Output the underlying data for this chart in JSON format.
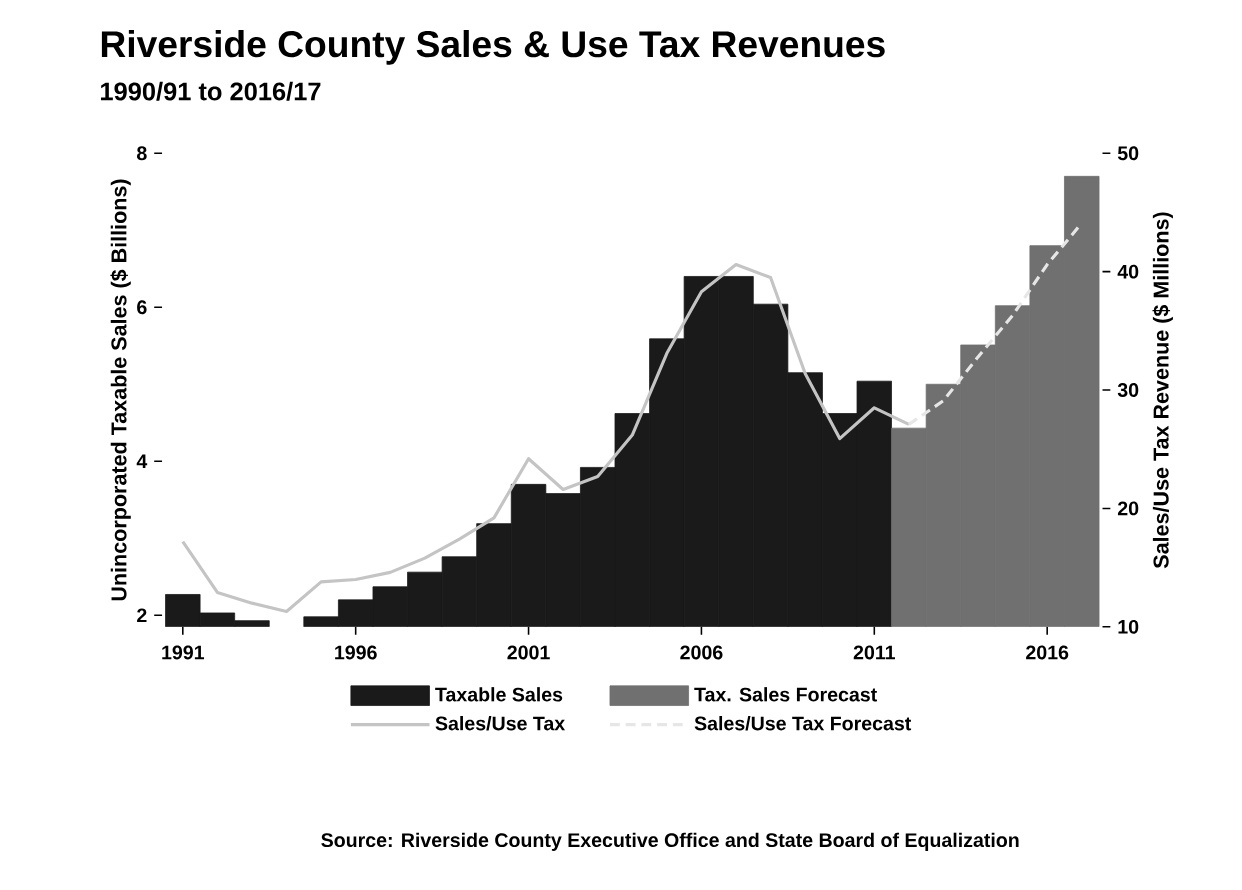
{
  "chart_data": {
    "type": "bar",
    "title": "Riverside County Sales & Use Tax Revenues",
    "subtitle": "1990/91 to 2016/17",
    "ylabel": "Unincorporated Taxable Sales ($ Billions)",
    "y2label": "Sales/Use Tax Revenue ($ Millions)",
    "xlim": [
      1990.4,
      2017.6
    ],
    "xticks": [
      1991,
      1996,
      2001,
      2006,
      2011,
      2016
    ],
    "ylim": [
      1.85,
      8
    ],
    "yticks": [
      2,
      4,
      6,
      8
    ],
    "y2lim": [
      10,
      50
    ],
    "y2ticks": [
      10,
      20,
      30,
      40,
      50
    ],
    "series": [
      {
        "name": "Taxable Sales",
        "color": "#1a1a1a",
        "x": [
          1991,
          1992,
          1993,
          1994,
          1995,
          1996,
          1997,
          1998,
          1999,
          2000,
          2001,
          2002,
          2003,
          2004,
          2005,
          2006,
          2007,
          2008,
          2009,
          2010,
          2011
        ],
        "values": [
          2.27,
          2.03,
          1.93,
          null,
          1.98,
          2.2,
          2.37,
          2.56,
          2.76,
          3.19,
          3.7,
          3.58,
          3.92,
          4.62,
          5.59,
          6.4,
          6.4,
          6.04,
          5.15,
          4.62,
          5.04
        ]
      },
      {
        "name": "Tax. Sales Forecast",
        "color": "#707070",
        "x": [
          2012,
          2013,
          2014,
          2015,
          2016,
          2017
        ],
        "values": [
          4.43,
          5.0,
          5.51,
          6.02,
          6.8,
          7.7
        ]
      },
      {
        "name": "Sales/Use Tax",
        "type": "line",
        "axis": "y2",
        "color": "#c4c4c4",
        "line_style": "solid",
        "x": [
          1991,
          1992,
          1993,
          1994,
          1995,
          1996,
          1997,
          1998,
          1999,
          2000,
          2001,
          2002,
          2003,
          2004,
          2005,
          2006,
          2007,
          2008,
          2009,
          2010,
          2011,
          2012
        ],
        "values": [
          17.2,
          12.9,
          12.0,
          11.3,
          13.8,
          14.0,
          14.6,
          15.8,
          17.4,
          19.2,
          24.2,
          21.6,
          22.7,
          26.2,
          33.1,
          38.3,
          40.6,
          39.5,
          31.4,
          25.9,
          28.5,
          27.1
        ]
      },
      {
        "name": "Sales/Use Tax Forecast",
        "type": "line",
        "axis": "y2",
        "color": "#e6e6e6",
        "line_style": "dashed",
        "x": [
          2012,
          2013,
          2014,
          2015,
          2016,
          2017
        ],
        "values": [
          27.1,
          29.1,
          32.8,
          36.3,
          40.6,
          44.1
        ]
      }
    ],
    "legend": "bottom",
    "annotations": [
      "Source: Riverside County Executive Office and State Board of Equalization"
    ]
  }
}
